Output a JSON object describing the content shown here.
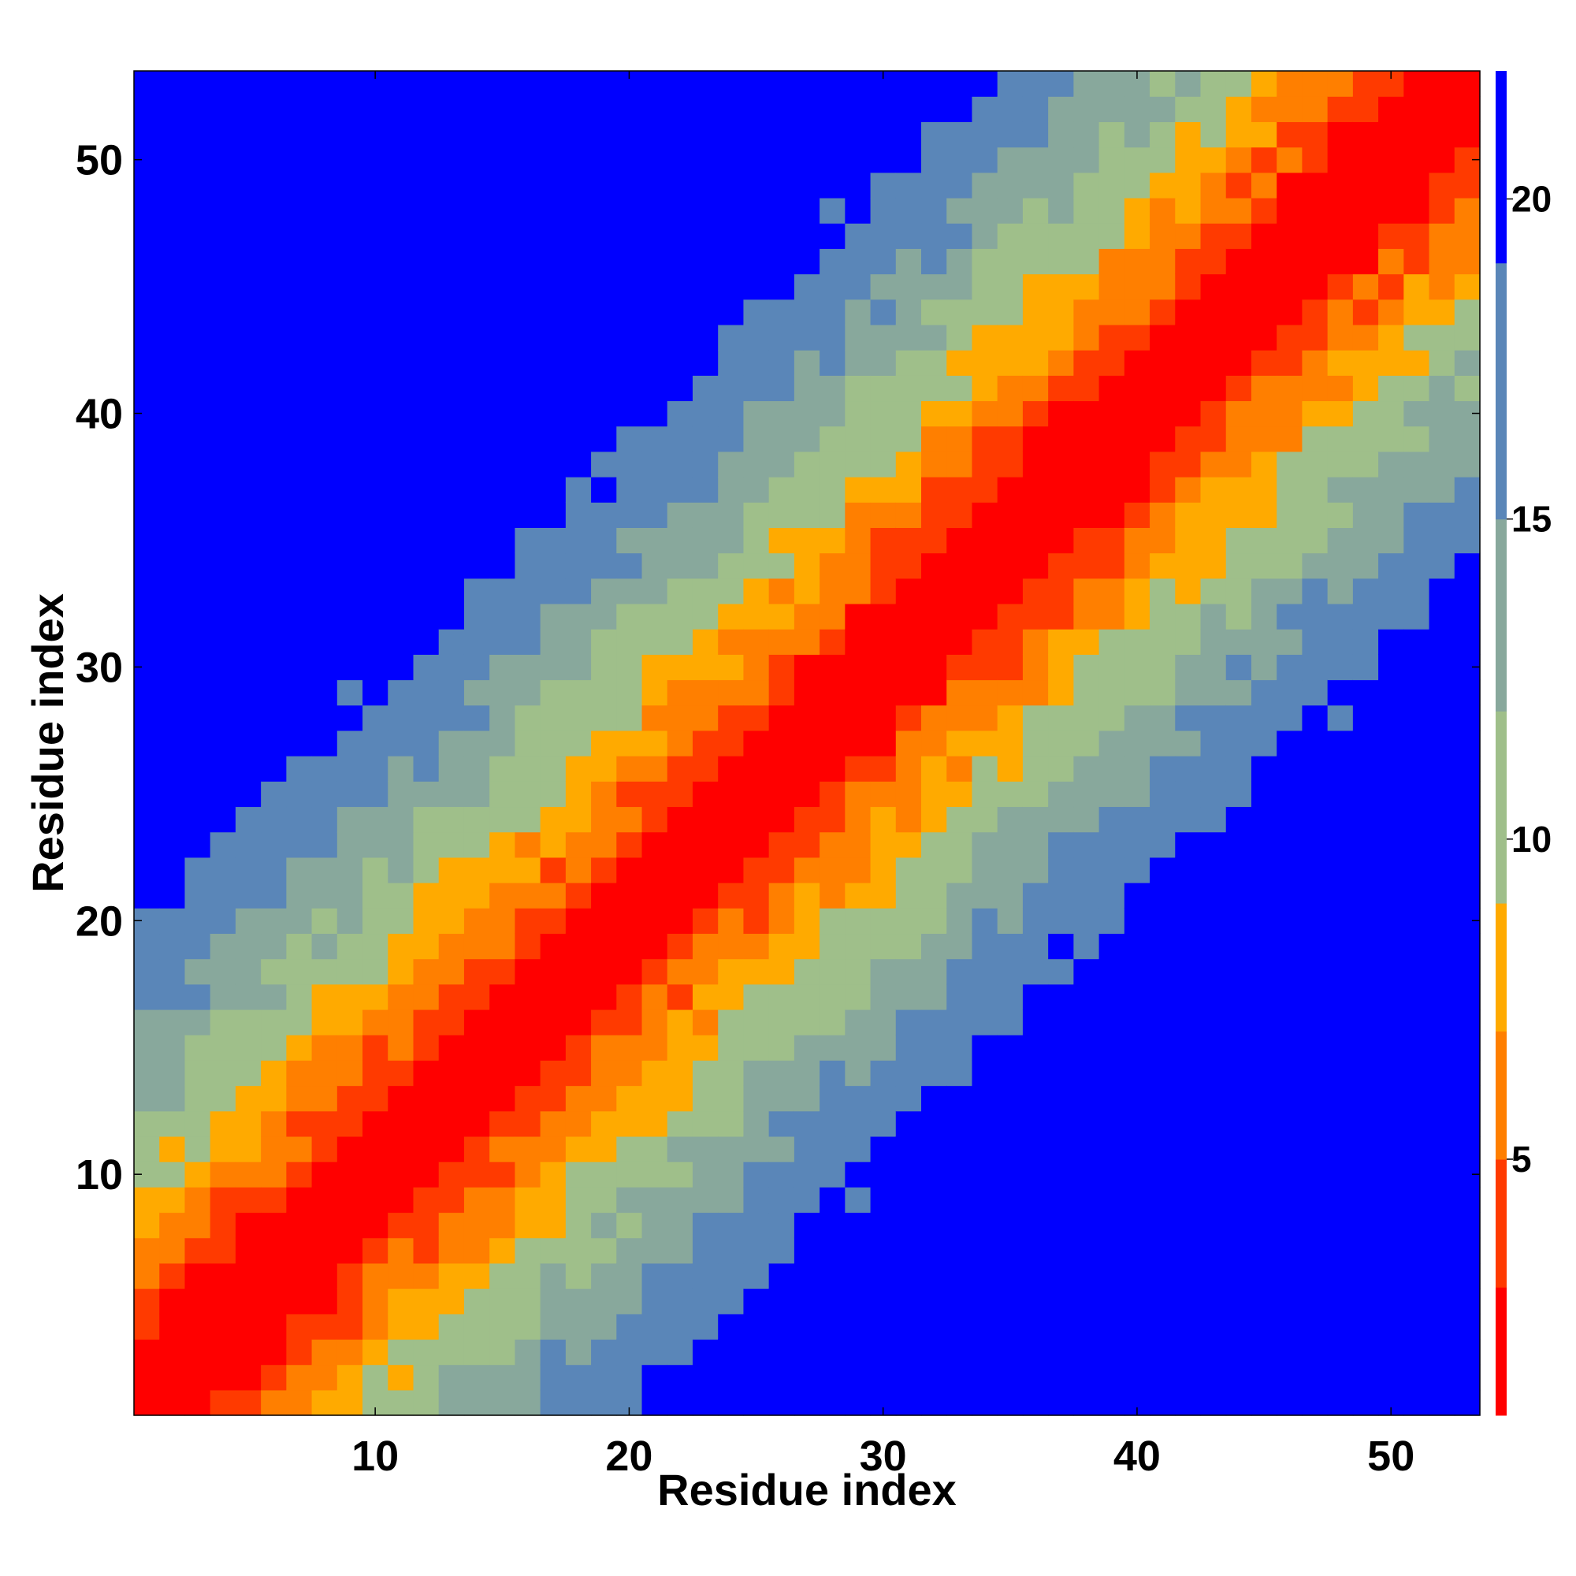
{
  "chart_data": {
    "type": "heatmap",
    "title": "",
    "xlabel": "Residue index",
    "ylabel": "Residue index",
    "n_residues": 53,
    "x_ticks": [
      10,
      20,
      30,
      40,
      50
    ],
    "y_ticks": [
      10,
      20,
      30,
      40,
      50
    ],
    "xlim": [
      0.5,
      53.5
    ],
    "ylim": [
      0.5,
      53.5
    ],
    "colorbar": {
      "ticks": [
        5,
        10,
        15,
        20
      ],
      "range": [
        1,
        22
      ],
      "levels": [
        {
          "max": 3,
          "color": "#ff0000"
        },
        {
          "max": 5,
          "color": "#ff3a00"
        },
        {
          "max": 7,
          "color": "#ff7f00"
        },
        {
          "max": 9,
          "color": "#ffaa00"
        },
        {
          "max": 12,
          "color": "#9fbf8a"
        },
        {
          "max": 15,
          "color": "#88a89c"
        },
        {
          "max": 19,
          "color": "#5a86b8"
        },
        {
          "max": 22,
          "color": "#0000ff"
        }
      ]
    },
    "value_description": "Symmetric residue distance matrix; value ≈ 1 + 0.9·|i−j| near diagonal, saturating at 22 (blue) far from diagonal",
    "band": {
      "diagonal_value": 1,
      "slope": 0.9,
      "cutoff_far_value": 22
    }
  }
}
